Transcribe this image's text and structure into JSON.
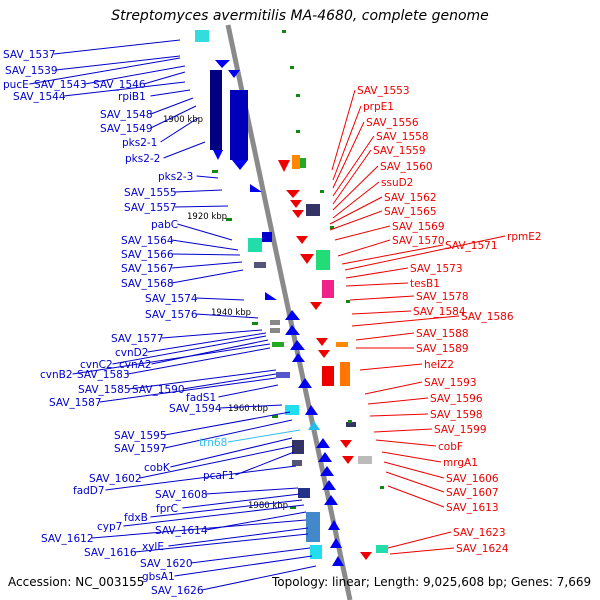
{
  "title": "Streptomyces avermitilis MA-4680, complete genome",
  "accession": "Accession: NC_003155",
  "topology": "Topology: linear; Length: 9,025,608 bp; Genes: 7,669",
  "colors": {
    "left": "#0000cc",
    "right": "#ee0000",
    "trna": "#33bbee",
    "axis": "#808080"
  },
  "kbp_marks": [
    "1900 kbp",
    "1920 kbp",
    "1940 kbp",
    "1960 kbp",
    "1980 kbp"
  ],
  "left_labels": [
    "SAV_1537",
    "SAV_1539",
    "pucE",
    "SAV_1543",
    "SAV_1546",
    "SAV_1544",
    "rpiB1",
    "SAV_1548",
    "SAV_1549",
    "pks2-1",
    "pks2-2",
    "pks2-3",
    "SAV_1555",
    "SAV_1557",
    "pabC",
    "SAV_1564",
    "SAV_1566",
    "SAV_1567",
    "SAV_1568",
    "SAV_1574",
    "SAV_1576",
    "SAV_1577",
    "cvnD2",
    "cvnC2",
    "cvnA2",
    "cvnB2",
    "SAV_1583",
    "SAV_1585",
    "SAV_1590",
    "SAV_1587",
    "fadS1",
    "SAV_1594",
    "SAV_1595",
    "SAV_1597",
    "cobK",
    "SAV_1602",
    "pcaF1",
    "fadD7",
    "SAV_1608",
    "fprC",
    "fdxB",
    "cyp7",
    "SAV_1614",
    "SAV_1612",
    "xylE",
    "SAV_1616",
    "SAV_1620",
    "gbsA1",
    "SAV_1626"
  ],
  "trna_label": "trn68",
  "right_labels": [
    "SAV_1553",
    "prpE1",
    "SAV_1556",
    "SAV_1558",
    "SAV_1559",
    "SAV_1560",
    "ssuD2",
    "SAV_1562",
    "SAV_1565",
    "SAV_1569",
    "SAV_1570",
    "SAV_1571",
    "rpmE2",
    "SAV_1573",
    "tesB1",
    "SAV_1578",
    "SAV_1584",
    "SAV_1586",
    "SAV_1588",
    "SAV_1589",
    "helZ2",
    "SAV_1593",
    "SAV_1596",
    "SAV_1598",
    "SAV_1599",
    "cobF",
    "mrgA1",
    "SAV_1606",
    "SAV_1607",
    "SAV_1613",
    "SAV_1623",
    "SAV_1624"
  ]
}
